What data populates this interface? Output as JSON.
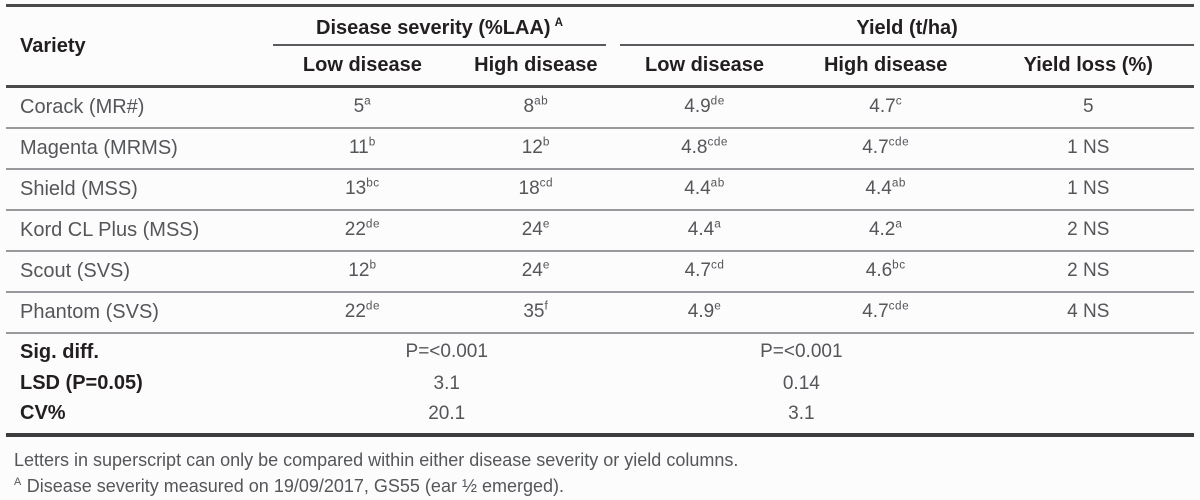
{
  "colors": {
    "rule_dark": "#4a4a4c",
    "rule_light": "#97999c",
    "text_heading": "#231f20",
    "text_body": "#55565a",
    "background": "#fcfcfc"
  },
  "table": {
    "header": {
      "variety": "Variety",
      "group_severity": "Disease severity (%LAA)",
      "group_severity_sup": "A",
      "group_yield": "Yield (t/ha)",
      "col_sev_low": "Low disease",
      "col_sev_high": "High disease",
      "col_yield_low": "Low disease",
      "col_yield_high": "High disease",
      "col_yield_loss": "Yield loss (%)"
    },
    "rows": [
      {
        "variety": "Corack (MR#)",
        "sev_low": {
          "v": "5",
          "s": "a"
        },
        "sev_high": {
          "v": "8",
          "s": "ab"
        },
        "yield_low": {
          "v": "4.9",
          "s": "de"
        },
        "yield_high": {
          "v": "4.7",
          "s": "c"
        },
        "yield_loss": "5"
      },
      {
        "variety": "Magenta (MRMS)",
        "sev_low": {
          "v": "11",
          "s": "b"
        },
        "sev_high": {
          "v": "12",
          "s": "b"
        },
        "yield_low": {
          "v": "4.8",
          "s": "cde"
        },
        "yield_high": {
          "v": "4.7",
          "s": "cde"
        },
        "yield_loss": "1 NS"
      },
      {
        "variety": "Shield (MSS)",
        "sev_low": {
          "v": "13",
          "s": "bc"
        },
        "sev_high": {
          "v": "18",
          "s": "cd"
        },
        "yield_low": {
          "v": "4.4",
          "s": "ab"
        },
        "yield_high": {
          "v": "4.4",
          "s": "ab"
        },
        "yield_loss": "1 NS"
      },
      {
        "variety": "Kord CL Plus (MSS)",
        "sev_low": {
          "v": "22",
          "s": "de"
        },
        "sev_high": {
          "v": "24",
          "s": "e"
        },
        "yield_low": {
          "v": "4.4",
          "s": "a"
        },
        "yield_high": {
          "v": "4.2",
          "s": "a"
        },
        "yield_loss": "2 NS"
      },
      {
        "variety": "Scout (SVS)",
        "sev_low": {
          "v": "12",
          "s": "b"
        },
        "sev_high": {
          "v": "24",
          "s": "e"
        },
        "yield_low": {
          "v": "4.7",
          "s": "cd"
        },
        "yield_high": {
          "v": "4.6",
          "s": "bc"
        },
        "yield_loss": "2 NS"
      },
      {
        "variety": "Phantom (SVS)",
        "sev_low": {
          "v": "22",
          "s": "de"
        },
        "sev_high": {
          "v": "35",
          "s": "f"
        },
        "yield_low": {
          "v": "4.9",
          "s": "e"
        },
        "yield_high": {
          "v": "4.7",
          "s": "cde"
        },
        "yield_loss": "4 NS"
      }
    ],
    "stats": [
      {
        "label": "Sig. diff.",
        "severity": "P=<0.001",
        "yield": "P=<0.001"
      },
      {
        "label": "LSD (P=0.05)",
        "severity": "3.1",
        "yield": "0.14"
      },
      {
        "label": "CV%",
        "severity": "20.1",
        "yield": "3.1"
      }
    ]
  },
  "footnotes": {
    "line1": "Letters in superscript can only be compared within either disease severity or yield columns.",
    "line2_sup": "A",
    "line2_text": " Disease severity measured on 19/09/2017, GS55 (ear ½ emerged)."
  }
}
